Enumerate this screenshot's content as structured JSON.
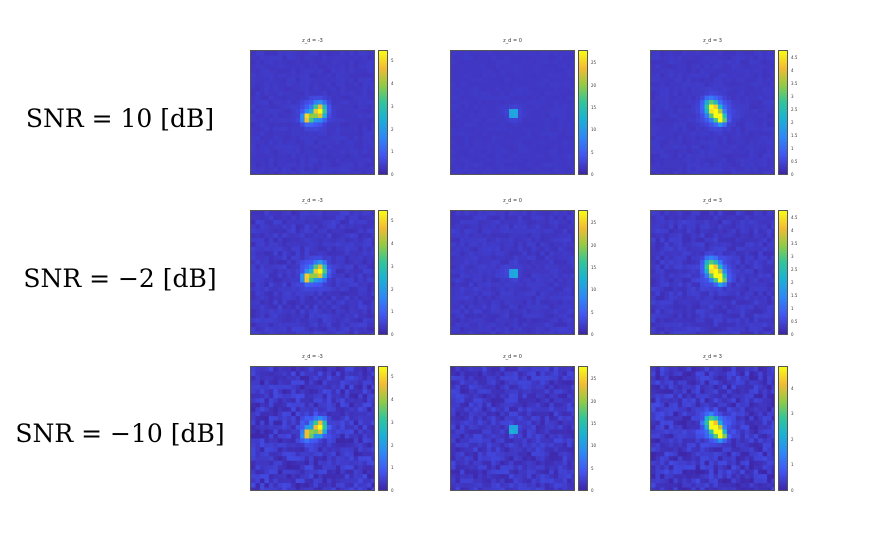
{
  "row_labels": [
    "SNR = 10 [dB]",
    "SNR = −2 [dB]",
    "SNR = −10 [dB]"
  ],
  "column_titles": [
    "z_d = -3",
    "z_d = 0",
    "z_d = 3"
  ],
  "colormap": [
    "#3e26a8",
    "#4355f2",
    "#2e87f7",
    "#1ab2d4",
    "#2fc59c",
    "#91cb44",
    "#f2bb33",
    "#f9fb15"
  ],
  "chart_data": [
    {
      "type": "heatmap",
      "row": "SNR = 10 [dB]",
      "title": "z_d = -3",
      "colorbar_ticks": [
        "0",
        "1",
        "2",
        "3",
        "4",
        "5"
      ],
      "clim": [
        0,
        5.5
      ],
      "noise_level": 0.25,
      "blob": "double",
      "peak_value": 5.3
    },
    {
      "type": "heatmap",
      "row": "SNR = 10 [dB]",
      "title": "z_d = 0",
      "colorbar_ticks": [
        "0",
        "5",
        "10",
        "15",
        "20",
        "25"
      ],
      "clim": [
        0,
        28
      ],
      "noise_level": 0.15,
      "blob": "point",
      "peak_value": 27
    },
    {
      "type": "heatmap",
      "row": "SNR = 10 [dB]",
      "title": "z_d = 3",
      "colorbar_ticks": [
        "0",
        "0.5",
        "1",
        "1.5",
        "2",
        "2.5",
        "3",
        "3.5",
        "4",
        "4.5"
      ],
      "clim": [
        0,
        4.8
      ],
      "noise_level": 0.25,
      "blob": "diagonal",
      "peak_value": 4.6
    },
    {
      "type": "heatmap",
      "row": "SNR = −2 [dB]",
      "title": "z_d = -3",
      "colorbar_ticks": [
        "0",
        "1",
        "2",
        "3",
        "4",
        "5"
      ],
      "clim": [
        0,
        5.5
      ],
      "noise_level": 0.55,
      "blob": "double",
      "peak_value": 5.3
    },
    {
      "type": "heatmap",
      "row": "SNR = −2 [dB]",
      "title": "z_d = 0",
      "colorbar_ticks": [
        "0",
        "5",
        "10",
        "15",
        "20",
        "25"
      ],
      "clim": [
        0,
        28
      ],
      "noise_level": 0.4,
      "blob": "point",
      "peak_value": 27
    },
    {
      "type": "heatmap",
      "row": "SNR = −2 [dB]",
      "title": "z_d = 3",
      "colorbar_ticks": [
        "0",
        "0.5",
        "1",
        "1.5",
        "2",
        "2.5",
        "3",
        "3.5",
        "4",
        "4.5"
      ],
      "clim": [
        0,
        4.8
      ],
      "noise_level": 0.55,
      "blob": "diagonal",
      "peak_value": 4.6
    },
    {
      "type": "heatmap",
      "row": "SNR = −10 [dB]",
      "title": "z_d = -3",
      "colorbar_ticks": [
        "0",
        "1",
        "2",
        "3",
        "4",
        "5"
      ],
      "clim": [
        0,
        5.5
      ],
      "noise_level": 1.1,
      "blob": "double",
      "peak_value": 5.3
    },
    {
      "type": "heatmap",
      "row": "SNR = −10 [dB]",
      "title": "z_d = 0",
      "colorbar_ticks": [
        "0",
        "5",
        "10",
        "15",
        "20",
        "25"
      ],
      "clim": [
        0,
        28
      ],
      "noise_level": 0.9,
      "blob": "point",
      "peak_value": 27
    },
    {
      "type": "heatmap",
      "row": "SNR = −10 [dB]",
      "title": "z_d = 3",
      "colorbar_ticks": [
        "0",
        "1",
        "2",
        "3",
        "4"
      ],
      "clim": [
        0,
        4.9
      ],
      "noise_level": 1.1,
      "blob": "diagonal",
      "peak_value": 4.7
    }
  ]
}
